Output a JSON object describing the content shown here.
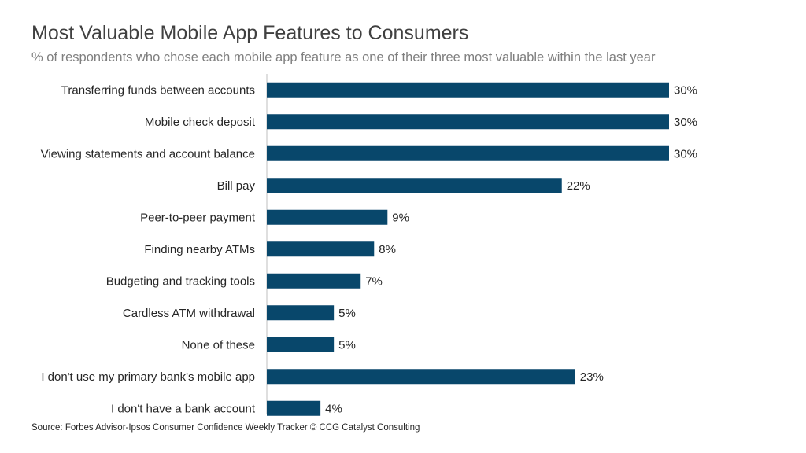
{
  "chart_data": {
    "type": "bar",
    "orientation": "horizontal",
    "title": "Most Valuable Mobile App Features to Consumers",
    "subtitle": "% of respondents who chose each mobile app feature as one of their three most valuable within the last year",
    "categories": [
      "Transferring funds between accounts",
      "Mobile check deposit",
      "Viewing statements and account balance",
      "Bill pay",
      "Peer-to-peer payment",
      "Finding nearby ATMs",
      "Budgeting and tracking tools",
      "Cardless ATM withdrawal",
      "None of these",
      "I don't use my primary bank's mobile app",
      "I don't have a bank account"
    ],
    "values": [
      30,
      30,
      30,
      22,
      9,
      8,
      7,
      5,
      5,
      23,
      4
    ],
    "value_labels": [
      "30%",
      "30%",
      "30%",
      "22%",
      "9%",
      "8%",
      "7%",
      "5%",
      "5%",
      "23%",
      "4%"
    ],
    "xlim": [
      0,
      30
    ],
    "bar_color": "#08476b",
    "grid": false,
    "legend": "none"
  },
  "source": "Source: Forbes Advisor-Ipsos Consumer Confidence Weekly Tracker © CCG Catalyst Consulting"
}
